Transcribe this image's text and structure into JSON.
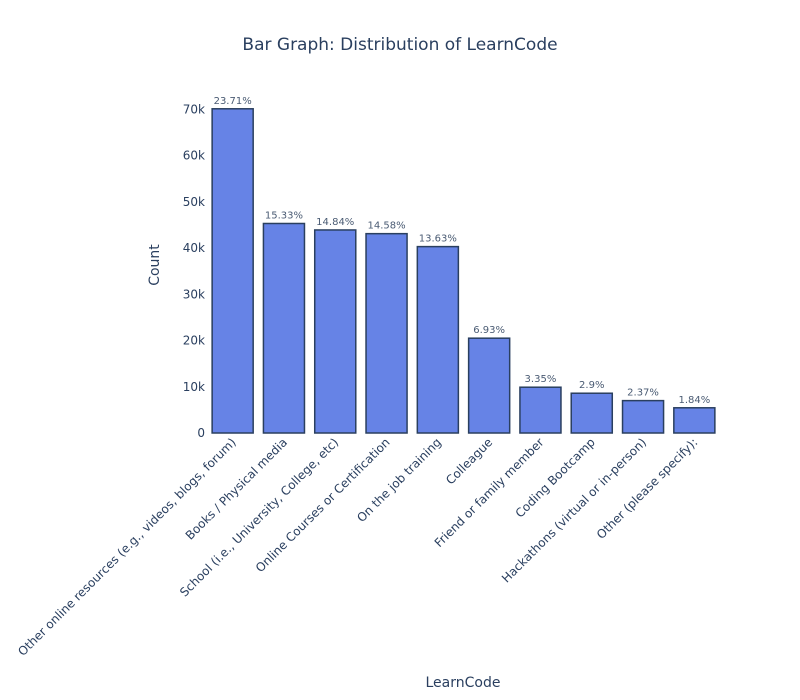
{
  "colors": {
    "bar_fill": "#6683e6",
    "bar_stroke": "#2a3f5f",
    "text": "#2a3f5f",
    "label_text": "#4a5b73",
    "grid": "#ffffff",
    "zero_line": "#444444"
  },
  "chart_data": {
    "type": "bar",
    "title": "Bar Graph: Distribution of LearnCode",
    "xlabel": "LearnCode",
    "ylabel": "Count",
    "ylim": [
      0,
      72000
    ],
    "yticks": [
      0,
      10000,
      20000,
      30000,
      40000,
      50000,
      60000,
      70000
    ],
    "ytick_labels": [
      "0",
      "10k",
      "20k",
      "30k",
      "40k",
      "50k",
      "60k",
      "70k"
    ],
    "categories": [
      "Other online resources (e.g., videos, blogs, forum)",
      "Books / Physical media",
      "School (i.e., University, College, etc)",
      "Online Courses or Certification",
      "On the job training",
      "Colleague",
      "Friend or family member",
      "Coding Bootcamp",
      "Hackathons (virtual or in-person)",
      "Other (please specify):"
    ],
    "values": [
      70100,
      45300,
      43900,
      43100,
      40300,
      20500,
      9900,
      8600,
      7000,
      5450
    ],
    "labels": [
      "23.71%",
      "15.33%",
      "14.84%",
      "14.58%",
      "13.63%",
      "6.93%",
      "3.35%",
      "2.9%",
      "2.37%",
      "1.84%"
    ]
  }
}
